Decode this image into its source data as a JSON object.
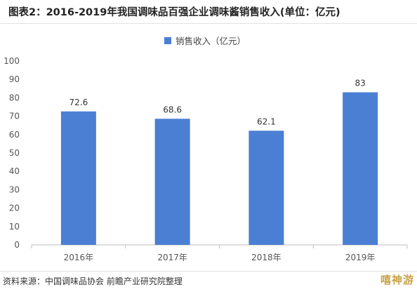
{
  "title": "图表2：2016-2019年我国调味品百强企业调味酱销售收入(单位：亿元)",
  "source": "资料来源：中国调味品协会 前瞻产业研究院整理",
  "corner_watermark": "嘻神游",
  "colors": {
    "bar": "#4a7fd4",
    "axis": "#bfbfbf",
    "title": "#222222"
  },
  "chart_data": {
    "type": "bar",
    "categories": [
      "2016年",
      "2017年",
      "2018年",
      "2019年"
    ],
    "series": [
      {
        "name": "销售收入（亿元）",
        "values": [
          72.6,
          68.6,
          62.1,
          83
        ]
      }
    ],
    "data_labels": [
      "72.6",
      "68.6",
      "62.1",
      "83"
    ],
    "ylim": [
      0,
      100
    ],
    "yticks": [
      0,
      10,
      20,
      30,
      40,
      50,
      60,
      70,
      80,
      90,
      100
    ],
    "xlabel": "",
    "ylabel": "",
    "grid": false,
    "legend": "top-center"
  }
}
